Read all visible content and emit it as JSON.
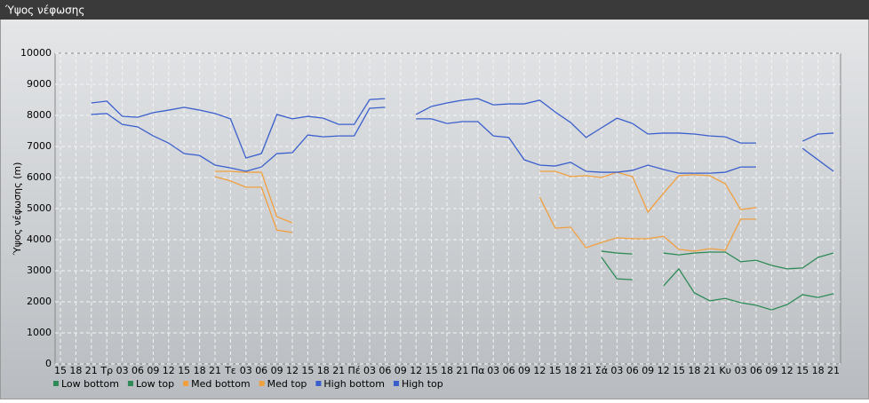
{
  "chart_data": {
    "type": "line",
    "title": "Ύψος νέφωσης",
    "y_label": "Ύψος νέφωσης (m)",
    "categories": [
      "15",
      "18",
      "21",
      "Τρ",
      "03",
      "06",
      "09",
      "12",
      "15",
      "18",
      "21",
      "Τε",
      "03",
      "06",
      "09",
      "12",
      "15",
      "18",
      "21",
      "Πέ",
      "03",
      "06",
      "09",
      "12",
      "15",
      "18",
      "21",
      "Πα",
      "03",
      "06",
      "09",
      "12",
      "15",
      "18",
      "21",
      "Σά",
      "03",
      "06",
      "09",
      "12",
      "15",
      "18",
      "21",
      "Κυ",
      "03",
      "06",
      "09",
      "12",
      "15",
      "18",
      "21"
    ],
    "ylim": [
      0,
      10000
    ],
    "yticks": [
      0,
      1000,
      2000,
      3000,
      4000,
      5000,
      6000,
      7000,
      8000,
      9000,
      10000
    ],
    "grid": true,
    "series": [
      {
        "name": "Low bottom",
        "color": "#2e8b57",
        "values": [
          null,
          null,
          null,
          null,
          null,
          null,
          null,
          null,
          null,
          null,
          null,
          null,
          null,
          null,
          null,
          null,
          null,
          null,
          null,
          null,
          null,
          null,
          null,
          null,
          null,
          null,
          null,
          null,
          null,
          null,
          null,
          null,
          null,
          null,
          null,
          3430,
          2740,
          2710,
          null,
          2510,
          3060,
          2290,
          2030,
          2110,
          1970,
          1890,
          1740,
          1910,
          2230,
          2140,
          2260
        ]
      },
      {
        "name": "Low top",
        "color": "#2e8b57",
        "values": [
          null,
          null,
          null,
          null,
          null,
          null,
          null,
          null,
          null,
          null,
          null,
          null,
          null,
          null,
          null,
          null,
          null,
          null,
          null,
          null,
          null,
          null,
          null,
          null,
          null,
          null,
          null,
          null,
          null,
          null,
          null,
          null,
          null,
          null,
          null,
          3630,
          3570,
          3540,
          null,
          3570,
          3510,
          3570,
          3600,
          3600,
          3290,
          3340,
          3170,
          3060,
          3090,
          3430,
          3570
        ]
      },
      {
        "name": "Med bottom",
        "color": "#f0a040",
        "values": [
          null,
          null,
          null,
          null,
          null,
          null,
          null,
          null,
          null,
          null,
          6030,
          5890,
          5690,
          5690,
          4310,
          4230,
          null,
          null,
          null,
          null,
          null,
          null,
          null,
          null,
          null,
          null,
          null,
          null,
          null,
          null,
          null,
          5370,
          4370,
          4400,
          3740,
          3910,
          4060,
          4030,
          4030,
          4110,
          3690,
          3630,
          3710,
          3660,
          4660,
          4660,
          null,
          null,
          null,
          null,
          null
        ]
      },
      {
        "name": "Med top",
        "color": "#f0a040",
        "values": [
          null,
          null,
          null,
          null,
          null,
          null,
          null,
          null,
          null,
          null,
          6200,
          6200,
          6170,
          6170,
          4740,
          4540,
          null,
          null,
          null,
          null,
          null,
          null,
          null,
          null,
          null,
          null,
          null,
          null,
          null,
          null,
          null,
          6200,
          6200,
          6030,
          6060,
          6000,
          6170,
          6030,
          4890,
          5490,
          6060,
          6090,
          6060,
          5800,
          4970,
          5030,
          null,
          null,
          null,
          null,
          null
        ]
      },
      {
        "name": "High bottom",
        "color": "#3a5fcd",
        "values": [
          null,
          null,
          8030,
          8060,
          7710,
          7630,
          7340,
          7110,
          6770,
          6710,
          6400,
          6310,
          6200,
          6340,
          6770,
          6800,
          7370,
          7310,
          7340,
          7340,
          8230,
          8260,
          null,
          7890,
          7890,
          7740,
          7800,
          7800,
          7340,
          7290,
          6570,
          6400,
          6370,
          6490,
          6200,
          6170,
          6170,
          6230,
          6400,
          6260,
          6140,
          6140,
          6140,
          6170,
          6340,
          6340,
          null,
          null,
          6940,
          6570,
          6200
        ]
      },
      {
        "name": "High top",
        "color": "#3a5fcd",
        "values": [
          null,
          null,
          8400,
          8460,
          7970,
          7940,
          8090,
          8170,
          8260,
          8170,
          8060,
          7890,
          6630,
          6770,
          8030,
          7890,
          7970,
          7910,
          7710,
          7710,
          8510,
          8540,
          null,
          8030,
          8290,
          8400,
          8490,
          8540,
          8340,
          8370,
          8370,
          8490,
          8110,
          7770,
          7290,
          7600,
          7910,
          7740,
          7400,
          7430,
          7430,
          7400,
          7340,
          7310,
          7110,
          7110,
          null,
          null,
          7170,
          7400,
          7430
        ]
      }
    ]
  }
}
